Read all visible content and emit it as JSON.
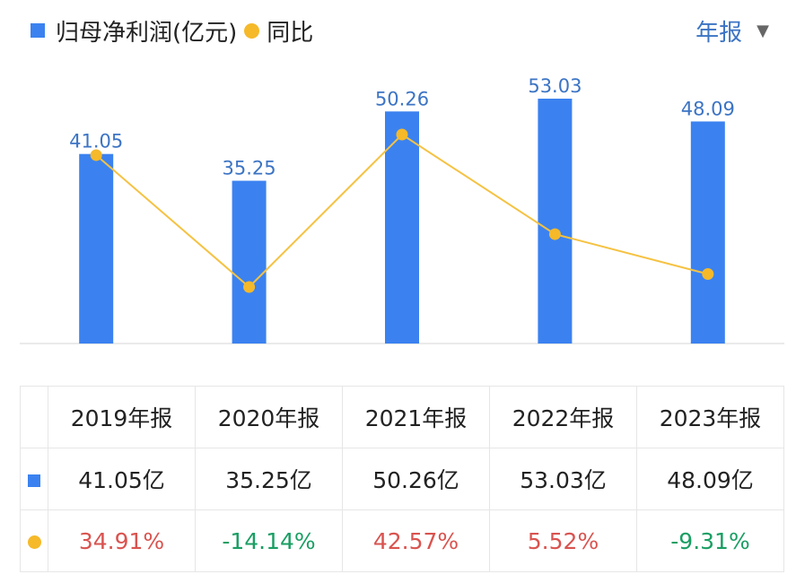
{
  "legend": {
    "bar_label": "归母净利润(亿元)",
    "line_label": "同比"
  },
  "period_selector": {
    "label": "年报",
    "caret": "▼"
  },
  "colors": {
    "bar": "#3b82f0",
    "line": "#f5c242",
    "dot": "#f5b92a",
    "value_label": "#3c74c4",
    "positive": "#d9534f",
    "negative": "#1a9e63"
  },
  "chart_data": {
    "type": "bar",
    "categories": [
      "2019年报",
      "2020年报",
      "2021年报",
      "2022年报",
      "2023年报"
    ],
    "series": [
      {
        "name": "归母净利润(亿元)",
        "type": "bar",
        "values": [
          41.05,
          35.25,
          50.26,
          53.03,
          48.09
        ],
        "labels": [
          "41.05",
          "35.25",
          "50.26",
          "53.03",
          "48.09"
        ]
      },
      {
        "name": "同比",
        "type": "line",
        "values": [
          34.91,
          -14.14,
          42.57,
          5.52,
          -9.31
        ]
      }
    ]
  },
  "table": {
    "headers": [
      "2019年报",
      "2020年报",
      "2021年报",
      "2022年报",
      "2023年报"
    ],
    "profit_row": [
      "41.05亿",
      "35.25亿",
      "50.26亿",
      "53.03亿",
      "48.09亿"
    ],
    "yoy_row": [
      "34.91%",
      "-14.14%",
      "42.57%",
      "5.52%",
      "-9.31%"
    ]
  }
}
